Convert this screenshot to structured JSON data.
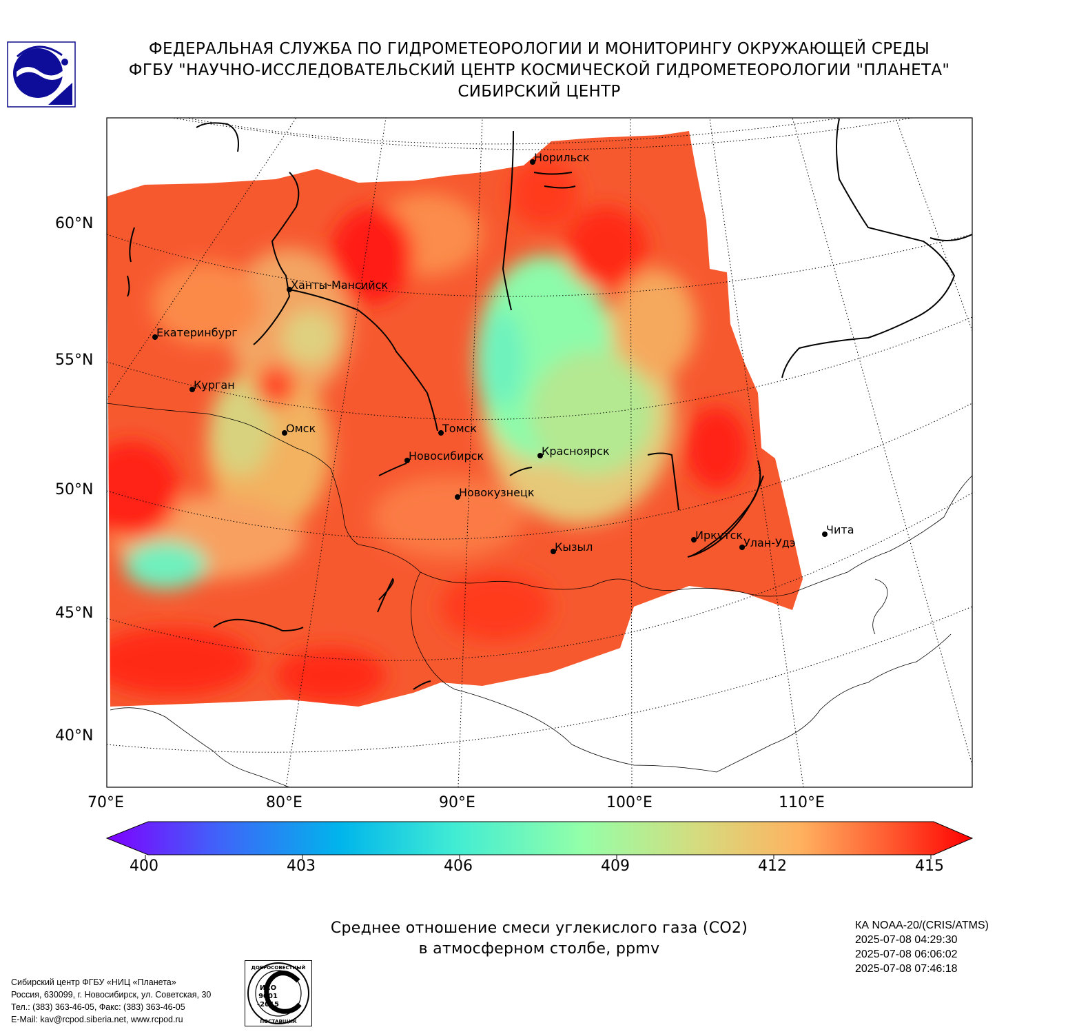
{
  "header": {
    "line1": "ФЕДЕРАЛЬНАЯ СЛУЖБА ПО ГИДРОМЕТЕОРОЛОГИИ И МОНИТОРИНГУ ОКРУЖАЮЩЕЙ СРЕДЫ",
    "line2": "ФГБУ \"НАУЧНО-ИССЛЕДОВАТЕЛЬСКИЙ ЦЕНТР КОСМИЧЕСКОЙ ГИДРОМЕТЕОРОЛОГИИ \"ПЛАНЕТА\"",
    "line3": "СИБИРСКИЙ ЦЕНТР"
  },
  "logo_icon": "planeta-logo-icon",
  "map": {
    "projection": "conic",
    "lat_labels": [
      "60°N",
      "55°N",
      "50°N",
      "45°N",
      "40°N"
    ],
    "lon_labels": [
      "70°E",
      "80°E",
      "90°E",
      "100°E",
      "110°E"
    ],
    "cities": [
      {
        "name": "Норильск"
      },
      {
        "name": "Ханты-Мансийск"
      },
      {
        "name": "Екатеринбург"
      },
      {
        "name": "Курган"
      },
      {
        "name": "Омск"
      },
      {
        "name": "Томск"
      },
      {
        "name": "Новосибирск"
      },
      {
        "name": "Красноярск"
      },
      {
        "name": "Новокузнецк"
      },
      {
        "name": "Кызыл"
      },
      {
        "name": "Иркутск"
      },
      {
        "name": "Улан-Удэ"
      },
      {
        "name": "Чита"
      }
    ]
  },
  "colorbar": {
    "ticks": [
      "400",
      "403",
      "406",
      "409",
      "412",
      "415"
    ],
    "min": 400,
    "max": 415,
    "colors": [
      "#7f00ff",
      "#3f64f9",
      "#00b5eb",
      "#40ecd4",
      "#94ffa8",
      "#d4dc7f",
      "#ffb260",
      "#ff5e32",
      "#ff0000"
    ]
  },
  "caption": {
    "line1": "Среднее отношение смеси углекислого газа (CO2)",
    "line2": "в атмосферном столбе, ppmv"
  },
  "meta": {
    "satellite": "КА NOAA-20/(CRIS/ATMS)",
    "times": [
      "2025-07-08 04:29:30",
      "2025-07-08 06:06:02",
      "2025-07-08 07:46:18"
    ]
  },
  "address": {
    "line1": "Сибирский центр ФГБУ «НИЦ «Планета»",
    "line2": "Россия, 630099, г. Новосибирск, ул. Советская, 30",
    "line3": "Тел.: (383) 363-46-05, Факс: (383) 363-46-05",
    "line4": "E-Mail: kav@rcpod.siberia.net, www.rcpod.ru"
  },
  "iso_badge": {
    "top": "ДОБРОСОВЕСТНЫЙ",
    "mid1": "ИСО",
    "mid2": "9001",
    "mid3": "-2015",
    "bottom": "ПОСТАВЩИК"
  }
}
